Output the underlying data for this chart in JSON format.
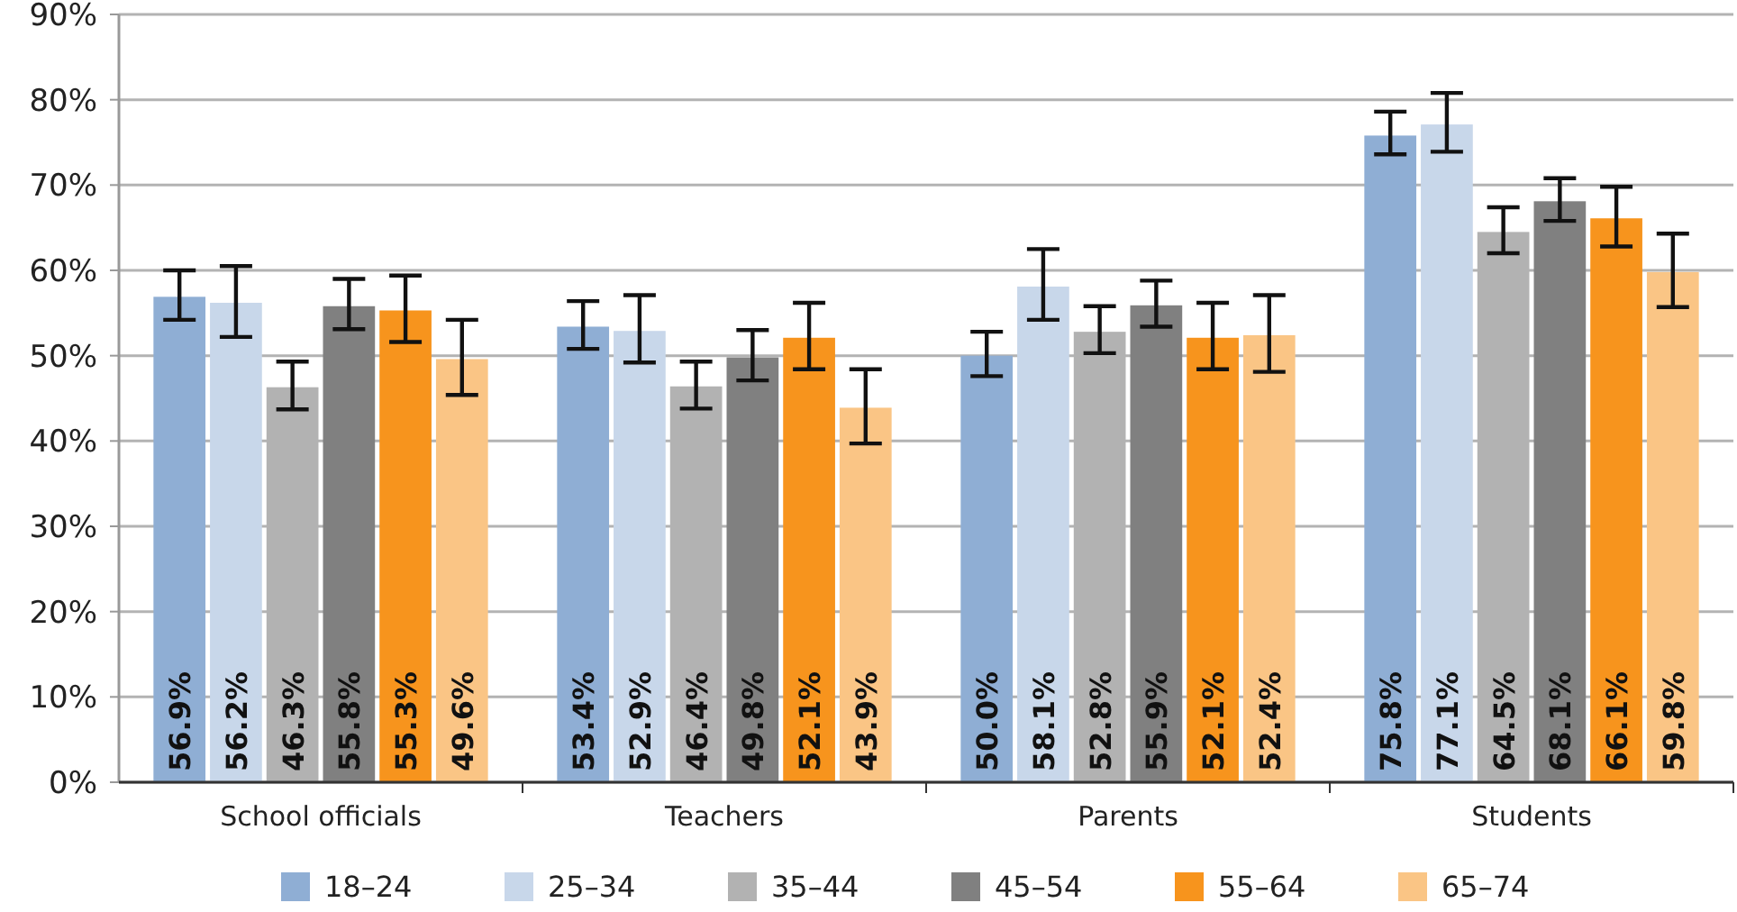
{
  "chart_data": {
    "type": "bar",
    "categories": [
      "School officials",
      "Teachers",
      "Parents",
      "Students"
    ],
    "series": [
      {
        "name": "18–24",
        "color": "#8faed4",
        "values": [
          56.9,
          53.4,
          50.0,
          75.8
        ],
        "value_labels": [
          "56.9%",
          "53.4%",
          "50.0%",
          "75.8%"
        ],
        "errors": [
          [
            54.2,
            60.0
          ],
          [
            50.8,
            56.4
          ],
          [
            47.6,
            52.8
          ],
          [
            73.6,
            78.6
          ]
        ]
      },
      {
        "name": "25–34",
        "color": "#c8d7ea",
        "values": [
          56.2,
          52.9,
          58.1,
          77.1
        ],
        "value_labels": [
          "56.2%",
          "52.9%",
          "58.1%",
          "77.1%"
        ],
        "errors": [
          [
            52.2,
            60.5
          ],
          [
            49.2,
            57.1
          ],
          [
            54.2,
            62.5
          ],
          [
            73.9,
            80.8
          ]
        ]
      },
      {
        "name": "35–44",
        "color": "#b2b2b2",
        "values": [
          46.3,
          46.4,
          52.8,
          64.5
        ],
        "value_labels": [
          "46.3%",
          "46.4%",
          "52.8%",
          "64.5%"
        ],
        "errors": [
          [
            43.7,
            49.3
          ],
          [
            43.8,
            49.3
          ],
          [
            50.3,
            55.8
          ],
          [
            62.0,
            67.4
          ]
        ]
      },
      {
        "name": "45–54",
        "color": "#808080",
        "values": [
          55.8,
          49.8,
          55.9,
          68.1
        ],
        "value_labels": [
          "55.8%",
          "49.8%",
          "55.9%",
          "68.1%"
        ],
        "errors": [
          [
            53.1,
            59.0
          ],
          [
            47.1,
            53.0
          ],
          [
            53.4,
            58.8
          ],
          [
            65.8,
            70.8
          ]
        ]
      },
      {
        "name": "55–64",
        "color": "#f7941d",
        "values": [
          55.3,
          52.1,
          52.1,
          66.1
        ],
        "value_labels": [
          "55.3%",
          "52.1%",
          "52.1%",
          "66.1%"
        ],
        "errors": [
          [
            51.6,
            59.4
          ],
          [
            48.4,
            56.2
          ],
          [
            48.4,
            56.2
          ],
          [
            62.8,
            69.8
          ]
        ]
      },
      {
        "name": "65–74",
        "color": "#fac585",
        "values": [
          49.6,
          43.9,
          52.4,
          59.8
        ],
        "value_labels": [
          "49.6%",
          "43.9%",
          "52.4%",
          "59.8%"
        ],
        "errors": [
          [
            45.4,
            54.2
          ],
          [
            39.7,
            48.4
          ],
          [
            48.1,
            57.1
          ],
          [
            55.7,
            64.3
          ]
        ]
      }
    ],
    "ylim": [
      0,
      90
    ],
    "yticks": [
      {
        "value": 0,
        "label": "0%"
      },
      {
        "value": 10,
        "label": "10%"
      },
      {
        "value": 20,
        "label": "20%"
      },
      {
        "value": 30,
        "label": "30%"
      },
      {
        "value": 40,
        "label": "40%"
      },
      {
        "value": 50,
        "label": "50%"
      },
      {
        "value": 60,
        "label": "60%"
      },
      {
        "value": 70,
        "label": "70%"
      },
      {
        "value": 80,
        "label": "80%"
      },
      {
        "value": 90,
        "label": "90%"
      }
    ],
    "grid": "y",
    "legend": "bottom"
  }
}
